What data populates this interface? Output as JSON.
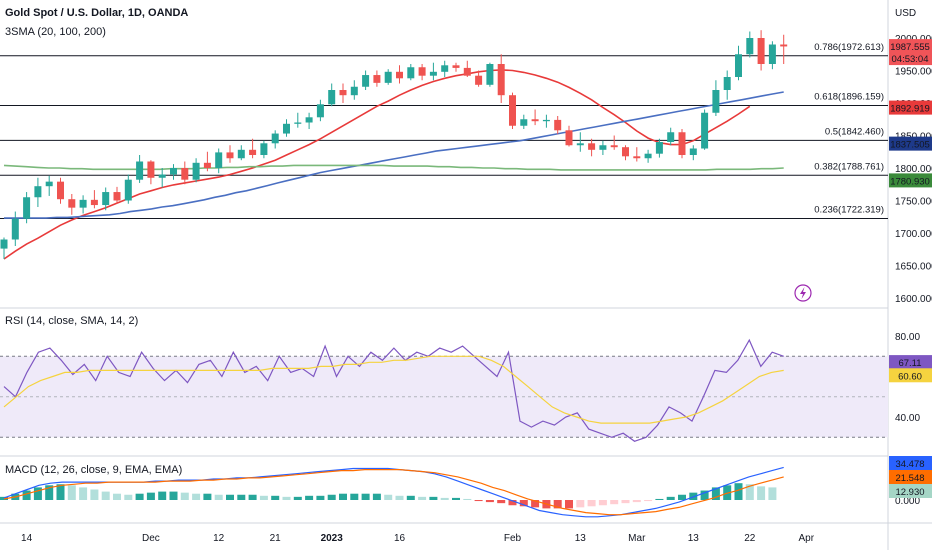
{
  "header": {
    "title": "Gold Spot / U.S. Dollar, 1D, OANDA",
    "indicator": "3SMA (20, 100, 200)",
    "currency": "USD"
  },
  "chart_data": [
    {
      "type": "candlestick",
      "title": "Gold Spot / U.S. Dollar, 1D, OANDA",
      "ylabel": "USD",
      "ylim": [
        1595,
        2030
      ],
      "yticks": [
        1600,
        1650,
        1700,
        1750,
        1800,
        1850,
        1900,
        1950,
        2000
      ],
      "ytick_labels": [
        "1600.000",
        "1650.000",
        "1700.000",
        "1750.000",
        "1800.000",
        "1850.000",
        "1900.000",
        "1950.000",
        "2000.000"
      ],
      "xticks": [
        {
          "i": 2,
          "label": "14"
        },
        {
          "i": 13,
          "label": "Dec"
        },
        {
          "i": 19,
          "label": "12"
        },
        {
          "i": 24,
          "label": "21"
        },
        {
          "i": 29,
          "label": "2023"
        },
        {
          "i": 35,
          "label": "16"
        },
        {
          "i": 45,
          "label": "Feb"
        },
        {
          "i": 51,
          "label": "13"
        },
        {
          "i": 56,
          "label": "Mar"
        },
        {
          "i": 61,
          "label": "13"
        },
        {
          "i": 66,
          "label": "22"
        },
        {
          "i": 71,
          "label": "Apr"
        }
      ],
      "candles": [
        [
          1676,
          1693,
          1660,
          1690
        ],
        [
          1690,
          1733,
          1680,
          1722
        ],
        [
          1722,
          1763,
          1715,
          1755
        ],
        [
          1755,
          1785,
          1740,
          1772
        ],
        [
          1772,
          1788,
          1757,
          1779
        ],
        [
          1779,
          1785,
          1745,
          1752
        ],
        [
          1752,
          1760,
          1728,
          1739
        ],
        [
          1739,
          1758,
          1730,
          1751
        ],
        [
          1751,
          1766,
          1738,
          1743
        ],
        [
          1743,
          1770,
          1735,
          1763
        ],
        [
          1763,
          1771,
          1745,
          1750
        ],
        [
          1750,
          1790,
          1745,
          1782
        ],
        [
          1782,
          1820,
          1777,
          1810
        ],
        [
          1810,
          1812,
          1775,
          1785
        ],
        [
          1785,
          1800,
          1770,
          1790
        ],
        [
          1790,
          1806,
          1782,
          1800
        ],
        [
          1800,
          1810,
          1775,
          1782
        ],
        [
          1782,
          1815,
          1778,
          1808
        ],
        [
          1808,
          1825,
          1795,
          1800
        ],
        [
          1800,
          1830,
          1792,
          1824
        ],
        [
          1824,
          1835,
          1808,
          1815
        ],
        [
          1815,
          1835,
          1812,
          1828
        ],
        [
          1828,
          1845,
          1815,
          1820
        ],
        [
          1820,
          1842,
          1815,
          1838
        ],
        [
          1838,
          1858,
          1830,
          1853
        ],
        [
          1853,
          1875,
          1848,
          1868
        ],
        [
          1868,
          1885,
          1862,
          1870
        ],
        [
          1870,
          1885,
          1860,
          1878
        ],
        [
          1878,
          1905,
          1872,
          1898
        ],
        [
          1898,
          1930,
          1895,
          1920
        ],
        [
          1920,
          1930,
          1900,
          1912
        ],
        [
          1912,
          1935,
          1905,
          1925
        ],
        [
          1925,
          1950,
          1920,
          1943
        ],
        [
          1943,
          1950,
          1925,
          1931
        ],
        [
          1931,
          1952,
          1928,
          1948
        ],
        [
          1948,
          1958,
          1930,
          1938
        ],
        [
          1938,
          1960,
          1935,
          1955
        ],
        [
          1955,
          1960,
          1935,
          1942
        ],
        [
          1942,
          1962,
          1935,
          1948
        ],
        [
          1948,
          1965,
          1940,
          1958
        ],
        [
          1958,
          1962,
          1948,
          1954
        ],
        [
          1954,
          1965,
          1940,
          1942
        ],
        [
          1942,
          1950,
          1925,
          1928
        ],
        [
          1928,
          1962,
          1925,
          1960
        ],
        [
          1960,
          1975,
          1900,
          1912
        ],
        [
          1912,
          1916,
          1860,
          1865
        ],
        [
          1865,
          1882,
          1860,
          1875
        ],
        [
          1875,
          1890,
          1866,
          1872
        ],
        [
          1872,
          1882,
          1862,
          1874
        ],
        [
          1874,
          1880,
          1852,
          1858
        ],
        [
          1858,
          1865,
          1833,
          1835
        ],
        [
          1835,
          1855,
          1825,
          1838
        ],
        [
          1838,
          1845,
          1818,
          1828
        ],
        [
          1828,
          1842,
          1820,
          1835
        ],
        [
          1835,
          1850,
          1828,
          1832
        ],
        [
          1832,
          1835,
          1812,
          1818
        ],
        [
          1818,
          1832,
          1810,
          1815
        ],
        [
          1815,
          1828,
          1808,
          1822
        ],
        [
          1822,
          1845,
          1816,
          1840
        ],
        [
          1840,
          1862,
          1835,
          1855
        ],
        [
          1855,
          1860,
          1815,
          1820
        ],
        [
          1820,
          1835,
          1812,
          1830
        ],
        [
          1830,
          1890,
          1828,
          1885
        ],
        [
          1885,
          1935,
          1880,
          1920
        ],
        [
          1920,
          1950,
          1905,
          1940
        ],
        [
          1940,
          1988,
          1935,
          1975
        ],
        [
          1975,
          2010,
          1970,
          2000
        ],
        [
          2000,
          2012,
          1950,
          1960
        ],
        [
          1960,
          1995,
          1952,
          1990
        ],
        [
          1990,
          2005,
          1960,
          1987
        ]
      ],
      "series": [
        {
          "name": "SMA 20",
          "color": "#e83a3a",
          "values": [
            1660,
            1672,
            1683,
            1692,
            1702,
            1712,
            1720,
            1727,
            1733,
            1739,
            1746,
            1753,
            1760,
            1765,
            1770,
            1774,
            1777,
            1780,
            1783,
            1786,
            1790,
            1795,
            1800,
            1806,
            1812,
            1820,
            1828,
            1836,
            1845,
            1855,
            1865,
            1875,
            1885,
            1895,
            1903,
            1912,
            1920,
            1927,
            1933,
            1938,
            1942,
            1945,
            1948,
            1950,
            1951,
            1950,
            1947,
            1943,
            1938,
            1932,
            1924,
            1915,
            1905,
            1893,
            1882,
            1870,
            1857,
            1846,
            1839,
            1836,
            1836,
            1842,
            1852,
            1862,
            1872,
            1883,
            1895
          ]
        },
        {
          "name": "SMA 100",
          "color": "#4a6fc2",
          "values": [
            1723,
            1723,
            1723,
            1723,
            1723,
            1724,
            1724,
            1725,
            1726,
            1727,
            1728,
            1730,
            1733,
            1735,
            1737,
            1740,
            1742,
            1745,
            1748,
            1751,
            1755,
            1758,
            1762,
            1765,
            1769,
            1773,
            1777,
            1781,
            1785,
            1789,
            1793,
            1796,
            1799,
            1802,
            1805,
            1808,
            1811,
            1814,
            1817,
            1820,
            1823,
            1826,
            1828,
            1830,
            1832,
            1834,
            1836,
            1838,
            1840,
            1842,
            1845,
            1848,
            1851,
            1854,
            1857,
            1860,
            1863,
            1866,
            1869,
            1872,
            1875,
            1878,
            1881,
            1884,
            1887,
            1890,
            1893,
            1896,
            1899,
            1902,
            1905,
            1908,
            1911,
            1914,
            1917
          ]
        },
        {
          "name": "SMA 200",
          "color": "#7ab87a",
          "values": [
            1804,
            1803,
            1802,
            1801,
            1800,
            1800,
            1799,
            1799,
            1798,
            1798,
            1798,
            1798,
            1798,
            1798,
            1798,
            1799,
            1799,
            1799,
            1800,
            1800,
            1801,
            1801,
            1802,
            1802,
            1803,
            1803,
            1804,
            1804,
            1804,
            1804,
            1804,
            1804,
            1804,
            1804,
            1804,
            1803,
            1803,
            1803,
            1803,
            1802,
            1802,
            1801,
            1801,
            1800,
            1800,
            1799,
            1799,
            1798,
            1798,
            1798,
            1797,
            1797,
            1797,
            1797,
            1797,
            1797,
            1797,
            1797,
            1797,
            1797,
            1797,
            1797,
            1797,
            1797,
            1798,
            1798,
            1798,
            1798,
            1799,
            1799,
            1800
          ]
        }
      ],
      "fib_levels": [
        {
          "ratio": "0.786",
          "value": 1972.613,
          "label": "0.786(1972.613)"
        },
        {
          "ratio": "0.618",
          "value": 1896.159,
          "label": "0.618(1896.159)"
        },
        {
          "ratio": "0.5",
          "value": 1842.46,
          "label": "0.5(1842.460)"
        },
        {
          "ratio": "0.382",
          "value": 1788.761,
          "label": "0.382(1788.761)"
        },
        {
          "ratio": "0.236",
          "value": 1722.319,
          "label": "0.236(1722.319)"
        }
      ],
      "price_tags": [
        {
          "value": 1987.555,
          "text": "1987.555",
          "sub": "04:53:04",
          "color": "#f05458"
        },
        {
          "value": 1892.919,
          "text": "1892.919",
          "color": "#e83a3a"
        },
        {
          "value": 1837.505,
          "text": "1837.505",
          "color": "#1e3a8a"
        },
        {
          "value": 1780.93,
          "text": "1780.930",
          "color": "#3a8a3a"
        }
      ]
    },
    {
      "type": "line",
      "title": "RSI (14, close, SMA, 14, 2)",
      "ylim": [
        25,
        85
      ],
      "yticks": [
        40,
        80
      ],
      "ytick_labels": [
        "40.00",
        "80.00"
      ],
      "bands": [
        30,
        70
      ],
      "series": [
        {
          "name": "RSI",
          "color": "#7e57c2",
          "values": [
            55,
            50,
            62,
            72,
            74,
            68,
            61,
            66,
            58,
            70,
            62,
            60,
            72,
            64,
            58,
            63,
            57,
            66,
            68,
            60,
            72,
            62,
            65,
            58,
            70,
            62,
            64,
            60,
            75,
            60,
            70,
            65,
            72,
            68,
            74,
            68,
            72,
            70,
            74,
            72,
            75,
            70,
            65,
            60,
            72,
            38,
            35,
            38,
            36,
            40,
            42,
            34,
            32,
            30,
            32,
            28,
            30,
            36,
            45,
            42,
            38,
            50,
            63,
            62,
            68,
            78,
            65,
            72,
            70
          ]
        },
        {
          "name": "SMA",
          "color": "#f5d33f",
          "values": [
            45,
            50,
            55,
            58,
            60,
            62,
            62,
            63,
            63,
            63,
            63,
            63,
            63,
            63,
            63,
            63,
            63,
            63,
            63,
            63,
            63,
            63,
            64,
            64,
            64,
            64,
            65,
            65,
            66,
            66,
            67,
            67,
            68,
            68,
            69,
            70,
            70,
            70,
            70,
            70,
            68,
            65,
            60,
            55,
            50,
            45,
            42,
            40,
            38,
            37,
            37,
            37,
            37,
            37,
            38,
            39,
            40,
            42,
            45,
            48,
            52,
            56,
            60,
            62,
            63
          ]
        }
      ],
      "price_tags": [
        {
          "value": 67.11,
          "text": "67.11",
          "color": "#7e57c2"
        },
        {
          "value": 60.6,
          "text": "60.60",
          "color": "#f5d33f"
        }
      ]
    },
    {
      "type": "bar",
      "title": "MACD (12, 26, close, 9, EMA, EMA)",
      "ylim": [
        -22,
        38
      ],
      "yticks": [
        0
      ],
      "ytick_labels": [
        "0.000"
      ],
      "histogram": [
        3,
        6,
        9,
        12,
        14,
        15,
        14,
        12,
        10,
        8,
        6,
        5,
        6,
        7,
        8,
        8,
        7,
        6,
        6,
        5,
        5,
        5,
        5,
        4,
        4,
        3,
        3,
        4,
        4,
        5,
        6,
        6,
        6,
        6,
        5,
        4,
        4,
        3,
        3,
        2,
        2,
        1,
        -1,
        -2,
        -3,
        -5,
        -6,
        -7,
        -8,
        -8,
        -8,
        -7,
        -6,
        -5,
        -4,
        -3,
        -2,
        -1,
        1,
        3,
        5,
        7,
        9,
        12,
        14,
        16,
        15,
        13,
        12
      ],
      "series": [
        {
          "name": "MACD",
          "color": "#2962ff",
          "values": [
            2,
            6,
            10,
            14,
            16,
            17,
            17,
            17,
            17,
            17,
            17,
            17,
            17,
            18,
            18,
            19,
            19,
            19,
            20,
            20,
            21,
            21,
            22,
            23,
            24,
            25,
            26,
            27,
            28,
            29,
            30,
            30,
            30,
            30,
            29,
            28,
            27,
            25,
            22,
            18,
            14,
            10,
            6,
            2,
            -2,
            -6,
            -10,
            -12,
            -14,
            -15,
            -16,
            -16,
            -15,
            -14,
            -12,
            -10,
            -8,
            -5,
            -2,
            2,
            6,
            10,
            14,
            18,
            22,
            25,
            28,
            31
          ]
        },
        {
          "name": "Signal",
          "color": "#ff6d00",
          "values": [
            1,
            3,
            6,
            9,
            12,
            14,
            15,
            16,
            16,
            17,
            17,
            17,
            17,
            17,
            18,
            18,
            18,
            19,
            19,
            20,
            20,
            21,
            21,
            22,
            23,
            24,
            25,
            26,
            27,
            28,
            28,
            29,
            29,
            29,
            29,
            28,
            27,
            26,
            24,
            22,
            19,
            16,
            12,
            9,
            5,
            1,
            -2,
            -5,
            -8,
            -10,
            -12,
            -13,
            -14,
            -14,
            -13,
            -12,
            -11,
            -9,
            -7,
            -4,
            -1,
            2,
            6,
            9,
            13,
            16,
            19,
            22
          ]
        }
      ],
      "price_tags": [
        {
          "value": 34.478,
          "text": "34.478",
          "color": "#2962ff"
        },
        {
          "value": 21.548,
          "text": "21.548",
          "color": "#ff6d00"
        },
        {
          "value": 12.93,
          "text": "12.930",
          "color": "#a5d6c6"
        }
      ]
    }
  ],
  "colors": {
    "up": "#26a69a",
    "down": "#ef5350",
    "fib_line": "#131722",
    "rsi_band_fill": "#efeaf9"
  },
  "icons": {
    "alert": "lightning-icon"
  }
}
